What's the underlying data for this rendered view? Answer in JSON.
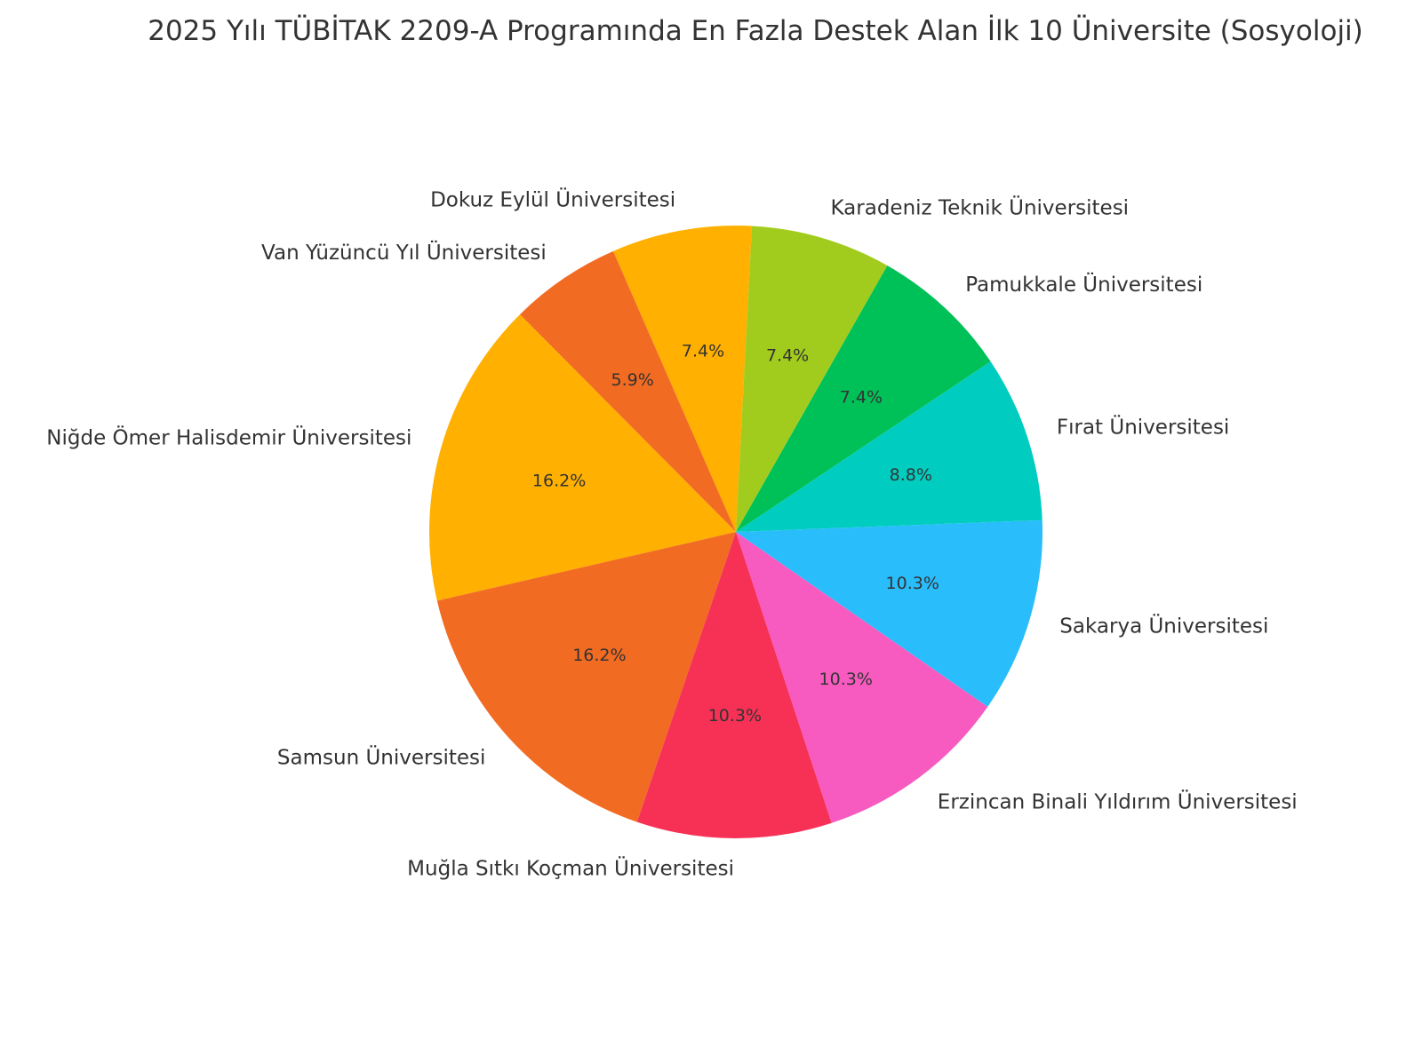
{
  "chart_data": {
    "type": "pie",
    "title": "2025 Yılı TÜBİTAK 2209-A Programında En Fazla Destek Alan İlk 10 Üniversite (Sosyoloji)",
    "start_angle_deg": 87,
    "direction": "counterclockwise",
    "slices": [
      {
        "label": "Dokuz Eylül Üniversitesi",
        "value": 7.4,
        "pct_label": "7.4%",
        "color": "#ffb000"
      },
      {
        "label": "Van Yüzüncü Yıl Üniversitesi",
        "value": 5.9,
        "pct_label": "5.9%",
        "color": "#f26b22"
      },
      {
        "label": "Niğde Ömer Halisdemir Üniversitesi",
        "value": 16.2,
        "pct_label": "16.2%",
        "color": "#ffb000"
      },
      {
        "label": "Samsun Üniversitesi",
        "value": 16.2,
        "pct_label": "16.2%",
        "color": "#f26b22"
      },
      {
        "label": "Muğla Sıtkı Koçman Üniversitesi",
        "value": 10.3,
        "pct_label": "10.3%",
        "color": "#f73156"
      },
      {
        "label": "Erzincan Binali Yıldırım Üniversitesi",
        "value": 10.3,
        "pct_label": "10.3%",
        "color": "#f75bc0"
      },
      {
        "label": "Sakarya Üniversitesi",
        "value": 10.3,
        "pct_label": "10.3%",
        "color": "#2abdfc"
      },
      {
        "label": "Fırat Üniversitesi",
        "value": 8.8,
        "pct_label": "8.8%",
        "color": "#00cdc0"
      },
      {
        "label": "Pamukkale Üniversitesi",
        "value": 7.4,
        "pct_label": "7.4%",
        "color": "#00c157"
      },
      {
        "label": "Karadeniz Teknik Üniversitesi",
        "value": 7.4,
        "pct_label": "7.4%",
        "color": "#a2cc1d"
      }
    ]
  }
}
